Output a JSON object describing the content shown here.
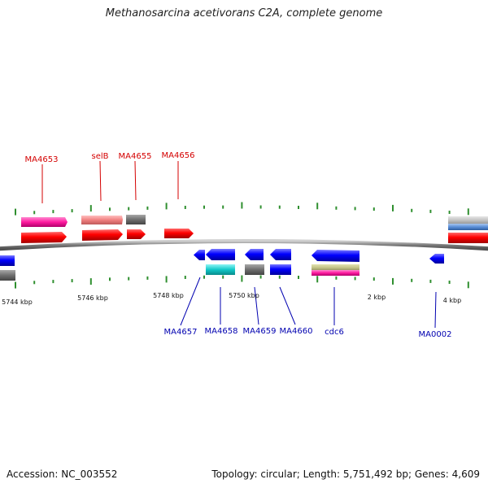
{
  "title": "Methanosarcina acetivorans C2A, complete genome",
  "footer": {
    "accession": "Accession: NC_003552",
    "summary": "Topology: circular; Length: 5,751,492 bp; Genes: 4,609"
  },
  "scale_labels": [
    "5744 kbp",
    "5746 kbp",
    "5748 kbp",
    "5750 kbp",
    "2 kbp",
    "4 kbp"
  ],
  "genes_top": [
    {
      "name": "MA4653",
      "color": "#d40000"
    },
    {
      "name": "selB",
      "color": "#d40000"
    },
    {
      "name": "MA4655",
      "color": "#d40000"
    },
    {
      "name": "MA4656",
      "color": "#d40000"
    }
  ],
  "genes_bottom": [
    {
      "name": "MA4657",
      "color": "#0000b0"
    },
    {
      "name": "MA4658",
      "color": "#0000b0"
    },
    {
      "name": "MA4659",
      "color": "#0000b0"
    },
    {
      "name": "MA4660",
      "color": "#0000b0"
    },
    {
      "name": "cdc6",
      "color": "#0000b0"
    },
    {
      "name": "MA0002",
      "color": "#0000b0"
    }
  ],
  "colors": {
    "forward_strand": "#ff0000",
    "reverse_strand": "#0000ff",
    "tick": "#2f8f2f",
    "backbone": "#808080"
  }
}
